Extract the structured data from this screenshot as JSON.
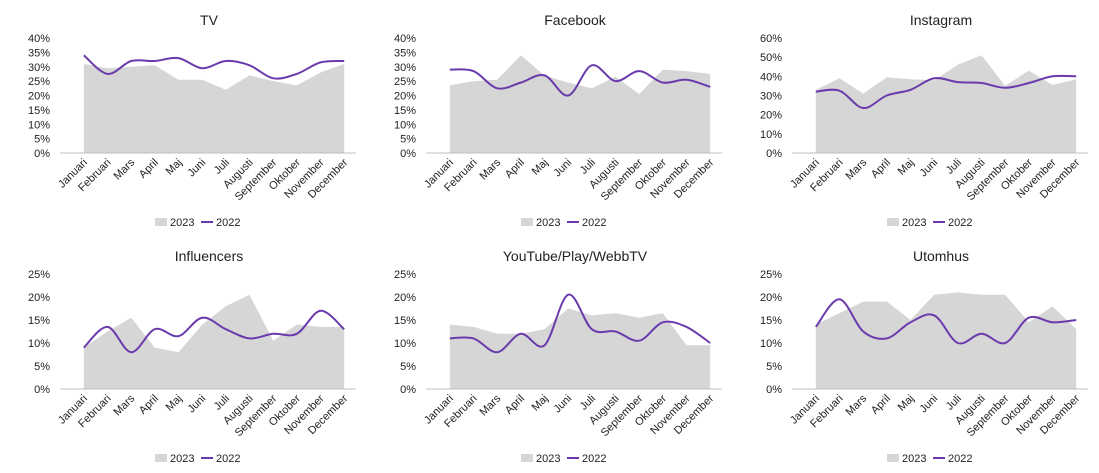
{
  "colors": {
    "area_2023": "#d6d6d6",
    "line_2022": "#6a3bad",
    "axis": "#bfbfbf"
  },
  "legend": {
    "series_2023": "2023",
    "series_2022": "2022"
  },
  "chart_data": [
    {
      "type": "area",
      "title": "TV",
      "categories": [
        "Januari",
        "Februari",
        "Mars",
        "April",
        "Maj",
        "Juni",
        "Juli",
        "Augusti",
        "September",
        "Oktober",
        "November",
        "December"
      ],
      "y_ticks": [
        "0%",
        "5%",
        "10%",
        "15%",
        "20%",
        "25%",
        "30%",
        "35%",
        "40%"
      ],
      "ylim": [
        0,
        40
      ],
      "series": [
        {
          "name": "2023",
          "type": "area",
          "values": [
            31,
            29.5,
            30,
            30.5,
            25.5,
            25.5,
            22,
            27,
            25,
            23.5,
            28,
            31
          ]
        },
        {
          "name": "2022",
          "type": "line",
          "values": [
            34,
            27.5,
            32,
            32,
            33,
            29.5,
            32,
            30.5,
            26,
            27.5,
            31.5,
            32
          ]
        }
      ],
      "legend_position": "bottom"
    },
    {
      "type": "area",
      "title": "Facebook",
      "categories": [
        "Januari",
        "Februari",
        "Mars",
        "April",
        "Maj",
        "Juni",
        "Juli",
        "Augusti",
        "September",
        "Oktober",
        "November",
        "December"
      ],
      "y_ticks": [
        "0%",
        "5%",
        "10%",
        "15%",
        "20%",
        "25%",
        "30%",
        "35%",
        "40%"
      ],
      "ylim": [
        0,
        40
      ],
      "series": [
        {
          "name": "2023",
          "type": "area",
          "values": [
            23.5,
            25,
            25.5,
            34,
            27,
            24.5,
            22.5,
            26.5,
            20.5,
            29,
            28.5,
            27.5
          ]
        },
        {
          "name": "2022",
          "type": "line",
          "values": [
            29,
            28.5,
            22.5,
            24.5,
            27,
            20,
            30.5,
            25,
            28.5,
            24.5,
            25.5,
            23
          ]
        }
      ],
      "legend_position": "bottom"
    },
    {
      "type": "area",
      "title": "Instagram",
      "categories": [
        "Januari",
        "Februari",
        "Mars",
        "April",
        "Maj",
        "Juni",
        "Juli",
        "Augusti",
        "September",
        "Oktober",
        "November",
        "December"
      ],
      "y_ticks": [
        "0%",
        "10%",
        "20%",
        "30%",
        "40%",
        "50%",
        "60%"
      ],
      "ylim": [
        0,
        60
      ],
      "series": [
        {
          "name": "2023",
          "type": "area",
          "values": [
            33,
            39,
            31,
            39.5,
            38.5,
            38,
            46,
            51,
            35,
            43,
            35.5,
            38.5
          ]
        },
        {
          "name": "2022",
          "type": "line",
          "values": [
            32,
            32.5,
            23.5,
            30,
            33,
            39,
            37,
            36.5,
            34,
            36.5,
            40,
            40
          ]
        }
      ],
      "legend_position": "bottom"
    },
    {
      "type": "area",
      "title": "Influencers",
      "categories": [
        "Januari",
        "Februari",
        "Mars",
        "April",
        "Maj",
        "Juni",
        "Juli",
        "Augusti",
        "September",
        "Oktober",
        "November",
        "December"
      ],
      "y_ticks": [
        "0%",
        "5%",
        "10%",
        "15%",
        "20%",
        "25%"
      ],
      "ylim": [
        0,
        25
      ],
      "series": [
        {
          "name": "2023",
          "type": "area",
          "values": [
            9,
            12.5,
            15.5,
            9,
            8,
            14,
            18,
            20.5,
            10.5,
            14,
            13.5,
            13.5
          ]
        },
        {
          "name": "2022",
          "type": "line",
          "values": [
            9,
            13.5,
            8,
            13,
            11.5,
            15.5,
            13,
            11,
            12,
            12,
            17,
            13
          ]
        }
      ],
      "legend_position": "bottom"
    },
    {
      "type": "area",
      "title": "YouTube/Play/WebbTV",
      "categories": [
        "Januari",
        "Februari",
        "Mars",
        "April",
        "Maj",
        "Juni",
        "Juli",
        "Augusti",
        "September",
        "Oktober",
        "November",
        "December"
      ],
      "y_ticks": [
        "0%",
        "5%",
        "10%",
        "15%",
        "20%",
        "25%"
      ],
      "ylim": [
        0,
        25
      ],
      "series": [
        {
          "name": "2023",
          "type": "area",
          "values": [
            14,
            13.5,
            12,
            12,
            13,
            17.5,
            16,
            16.5,
            15.5,
            16.5,
            9.5,
            9.5
          ]
        },
        {
          "name": "2022",
          "type": "line",
          "values": [
            11,
            11,
            8,
            12,
            9.5,
            20.5,
            13,
            12.5,
            10.5,
            14.5,
            13.5,
            10
          ]
        }
      ],
      "legend_position": "bottom"
    },
    {
      "type": "area",
      "title": "Utomhus",
      "categories": [
        "Januari",
        "Februari",
        "Mars",
        "April",
        "Maj",
        "Juni",
        "Juli",
        "Augusti",
        "September",
        "Oktober",
        "November",
        "December"
      ],
      "y_ticks": [
        "0%",
        "5%",
        "10%",
        "15%",
        "20%",
        "25%"
      ],
      "ylim": [
        0,
        25
      ],
      "series": [
        {
          "name": "2023",
          "type": "area",
          "values": [
            14,
            16.5,
            19,
            19,
            15,
            20.5,
            21,
            20.5,
            20.5,
            14.5,
            18,
            13
          ]
        },
        {
          "name": "2022",
          "type": "line",
          "values": [
            13.5,
            19.5,
            12.5,
            11,
            14.5,
            16,
            10,
            12,
            10,
            15.5,
            14.5,
            15
          ]
        }
      ],
      "legend_position": "bottom"
    }
  ]
}
